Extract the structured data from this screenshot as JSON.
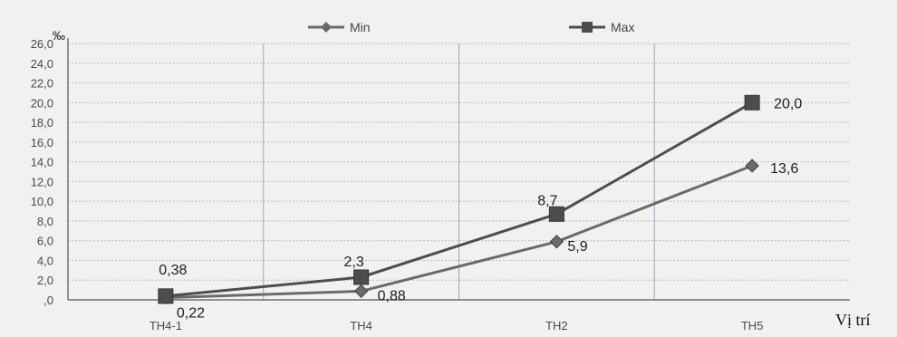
{
  "chart_data": {
    "type": "line",
    "categories": [
      "TH4-1",
      "TH4",
      "TH2",
      "TH5"
    ],
    "series": [
      {
        "name": "Min",
        "values": [
          0.22,
          0.88,
          5.9,
          13.6
        ],
        "labels": [
          "0,22",
          "0,88",
          "5,9",
          "13,6"
        ],
        "marker": "diamond",
        "color": "#6a6a6a"
      },
      {
        "name": "Max",
        "values": [
          0.38,
          2.3,
          8.7,
          20.0
        ],
        "labels": [
          "0,38",
          "2,3",
          "8,7",
          "20,0"
        ],
        "marker": "square",
        "color": "#4d4d4d"
      }
    ],
    "ylim": [
      0,
      26
    ],
    "y_ticks": [
      ",0",
      "2,0",
      "4,0",
      "6,0",
      "8,0",
      "10,0",
      "12,0",
      "14,0",
      "16,0",
      "18,0",
      "20,0",
      "22,0",
      "24,0",
      "26,0"
    ],
    "ylabel": "‰",
    "xlabel": "Vị trí",
    "legend_position": "top-center",
    "grid": true
  }
}
